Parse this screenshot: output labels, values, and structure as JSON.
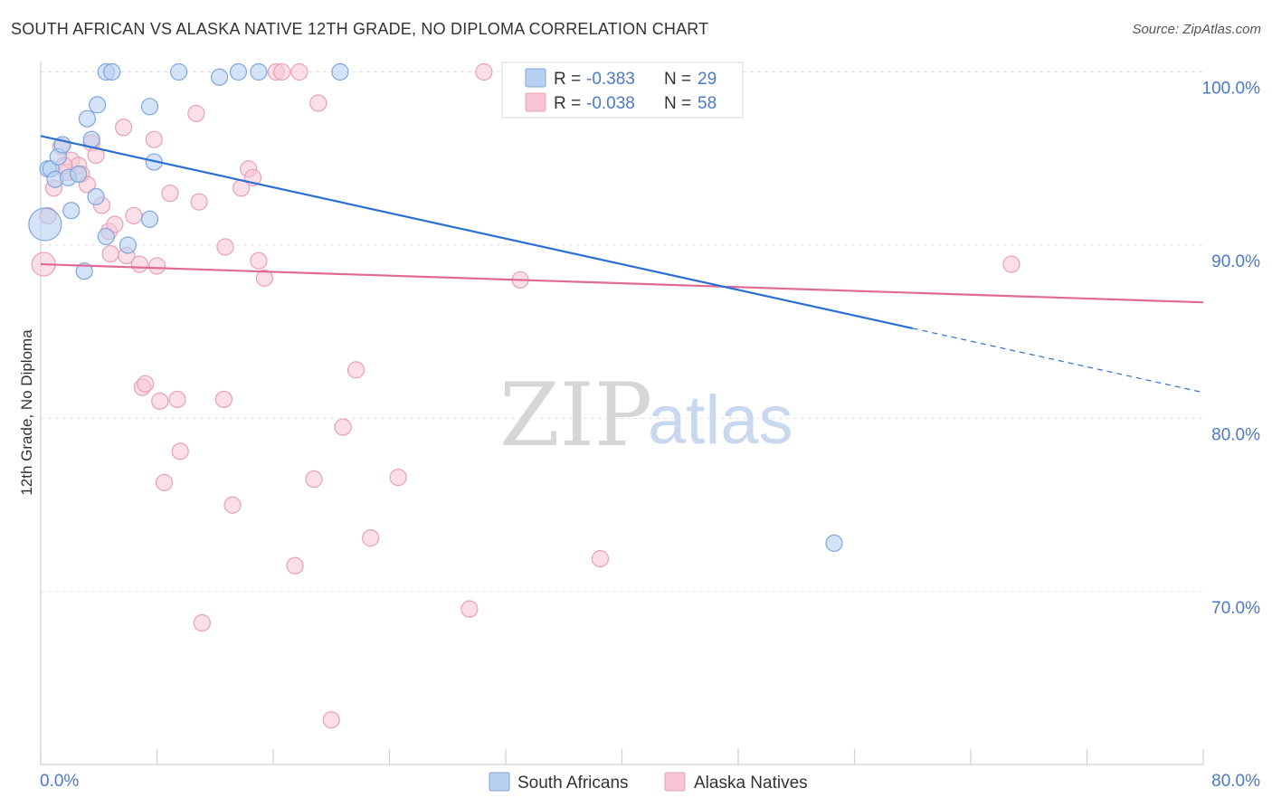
{
  "header": {
    "title": "SOUTH AFRICAN VS ALASKA NATIVE 12TH GRADE, NO DIPLOMA CORRELATION CHART",
    "source": "Source: ZipAtlas.com"
  },
  "watermark": {
    "part1": "ZIP",
    "part2": "atlas"
  },
  "legend_box": {
    "rows": [
      {
        "r_label": "R = ",
        "r_value": "-0.383",
        "n_label": "N = ",
        "n_value": "29"
      },
      {
        "r_label": "R = ",
        "r_value": "-0.038",
        "n_label": "N = ",
        "n_value": "58"
      }
    ]
  },
  "colors": {
    "blue_fill": "#b8d1f2",
    "blue_stroke": "#7ea6dc",
    "blue_line": "#2a6fd1",
    "pink_fill": "#f7c4d3",
    "pink_stroke": "#e8a0b6",
    "pink_line": "#e06a93",
    "tick_label": "#4a79c8",
    "grid": "#e3e3e3"
  },
  "chart_data": {
    "type": "scatter",
    "title": "SOUTH AFRICAN VS ALASKA NATIVE 12TH GRADE, NO DIPLOMA CORRELATION CHART",
    "xlabel": "",
    "ylabel": "12th Grade, No Diploma",
    "xlim": [
      0,
      80
    ],
    "ylim": [
      60.5,
      101.5
    ],
    "x_tick_labels": [
      "0.0%",
      "80.0%"
    ],
    "y_ticks": [
      70,
      80,
      90,
      100
    ],
    "y_tick_labels": [
      "70.0%",
      "80.0%",
      "90.0%",
      "100.0%"
    ],
    "grid": true,
    "legend_position": "bottom",
    "series": [
      {
        "name": "South Africans",
        "color": "#b8d1f2",
        "r": -0.383,
        "n": 29,
        "points": [
          [
            0.3,
            91.2
          ],
          [
            0.5,
            94.4
          ],
          [
            0.7,
            94.4
          ],
          [
            1.0,
            93.8
          ],
          [
            1.2,
            95.1
          ],
          [
            1.5,
            95.8
          ],
          [
            1.9,
            93.9
          ],
          [
            2.1,
            92.0
          ],
          [
            2.6,
            94.1
          ],
          [
            3.0,
            88.5
          ],
          [
            3.2,
            97.3
          ],
          [
            3.5,
            96.1
          ],
          [
            3.8,
            92.8
          ],
          [
            3.9,
            98.1
          ],
          [
            4.5,
            90.5
          ],
          [
            4.5,
            100.0
          ],
          [
            4.9,
            100.0
          ],
          [
            6.0,
            90.0
          ],
          [
            7.5,
            91.5
          ],
          [
            7.5,
            98.0
          ],
          [
            7.8,
            94.8
          ],
          [
            9.5,
            100.0
          ],
          [
            12.3,
            99.7
          ],
          [
            13.6,
            100.0
          ],
          [
            15.0,
            100.0
          ],
          [
            20.6,
            100.0
          ],
          [
            33.7,
            100.0
          ],
          [
            37.0,
            100.0
          ],
          [
            54.6,
            72.8
          ]
        ],
        "trend": {
          "x": [
            0,
            60
          ],
          "y": [
            96.3,
            85.2
          ]
        },
        "trend_dashed": {
          "x": [
            60,
            80
          ],
          "y": [
            85.2,
            81.5
          ]
        }
      },
      {
        "name": "Alaska Natives",
        "color": "#f7c4d3",
        "r": -0.038,
        "n": 58,
        "points": [
          [
            0.2,
            88.9
          ],
          [
            0.5,
            91.7
          ],
          [
            0.9,
            93.3
          ],
          [
            1.4,
            95.7
          ],
          [
            1.8,
            94.2
          ],
          [
            2.1,
            94.9
          ],
          [
            2.6,
            94.6
          ],
          [
            2.8,
            94.1
          ],
          [
            3.2,
            93.5
          ],
          [
            3.5,
            95.9
          ],
          [
            3.8,
            95.2
          ],
          [
            4.2,
            92.3
          ],
          [
            4.7,
            90.8
          ],
          [
            5.1,
            91.2
          ],
          [
            5.7,
            96.8
          ],
          [
            5.9,
            89.4
          ],
          [
            6.4,
            91.7
          ],
          [
            6.8,
            88.9
          ],
          [
            7.0,
            81.8
          ],
          [
            7.2,
            82.0
          ],
          [
            7.8,
            96.1
          ],
          [
            8.0,
            88.8
          ],
          [
            8.2,
            81.0
          ],
          [
            8.5,
            76.3
          ],
          [
            8.9,
            93.0
          ],
          [
            9.4,
            81.1
          ],
          [
            9.6,
            78.1
          ],
          [
            10.7,
            97.6
          ],
          [
            10.9,
            92.5
          ],
          [
            11.1,
            68.2
          ],
          [
            12.6,
            81.1
          ],
          [
            12.7,
            89.9
          ],
          [
            13.2,
            75.0
          ],
          [
            13.8,
            93.3
          ],
          [
            14.3,
            94.4
          ],
          [
            14.6,
            93.9
          ],
          [
            15.0,
            89.1
          ],
          [
            15.4,
            88.1
          ],
          [
            16.2,
            100.0
          ],
          [
            16.6,
            100.0
          ],
          [
            17.5,
            71.5
          ],
          [
            17.8,
            100.0
          ],
          [
            18.8,
            76.5
          ],
          [
            19.1,
            98.2
          ],
          [
            20.0,
            62.6
          ],
          [
            20.8,
            79.5
          ],
          [
            21.7,
            82.8
          ],
          [
            22.7,
            73.1
          ],
          [
            24.6,
            76.6
          ],
          [
            29.5,
            69.0
          ],
          [
            30.5,
            100.0
          ],
          [
            33.0,
            88.0
          ],
          [
            38.5,
            71.9
          ],
          [
            41.4,
            100.0
          ],
          [
            46.5,
            100.0
          ],
          [
            66.8,
            88.9
          ],
          [
            1.6,
            94.6
          ],
          [
            4.8,
            89.5
          ]
        ],
        "trend": {
          "x": [
            0,
            80
          ],
          "y": [
            88.9,
            86.7
          ]
        }
      }
    ]
  }
}
